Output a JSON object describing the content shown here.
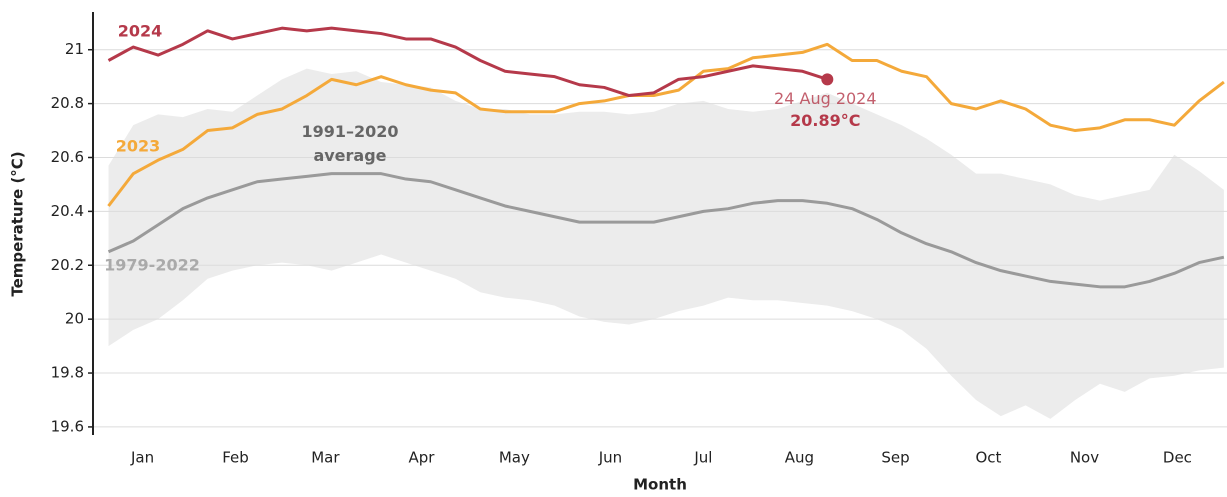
{
  "chart_data": {
    "type": "line",
    "xlabel": "Month",
    "ylabel": "Temperature (°C)",
    "xlim": [
      0,
      366
    ],
    "xticks": [
      {
        "value": 16,
        "label": "Jan"
      },
      {
        "value": 46,
        "label": "Feb"
      },
      {
        "value": 75,
        "label": "Mar"
      },
      {
        "value": 106,
        "label": "Apr"
      },
      {
        "value": 136,
        "label": "May"
      },
      {
        "value": 167,
        "label": "Jun"
      },
      {
        "value": 197,
        "label": "Jul"
      },
      {
        "value": 228,
        "label": "Aug"
      },
      {
        "value": 259,
        "label": "Sep"
      },
      {
        "value": 289,
        "label": "Oct"
      },
      {
        "value": 320,
        "label": "Nov"
      },
      {
        "value": 350,
        "label": "Dec"
      }
    ],
    "ylim": [
      19.57,
      21.14
    ],
    "yticks": [
      19.6,
      19.8,
      20,
      20.2,
      20.4,
      20.6,
      20.8,
      21
    ],
    "grid": true,
    "x": [
      5,
      13,
      21,
      29,
      37,
      45,
      53,
      61,
      69,
      77,
      85,
      93,
      101,
      109,
      117,
      125,
      133,
      141,
      149,
      157,
      165,
      173,
      181,
      189,
      197,
      205,
      213,
      221,
      229,
      237,
      245,
      253,
      261,
      269,
      277,
      285,
      293,
      301,
      309,
      317,
      325,
      333,
      341,
      349,
      357,
      365
    ],
    "band": {
      "name": "1979-2022",
      "color": "#ececec",
      "upper": [
        20.57,
        20.72,
        20.76,
        20.75,
        20.78,
        20.77,
        20.83,
        20.89,
        20.93,
        20.91,
        20.92,
        20.88,
        20.87,
        20.86,
        20.81,
        20.78,
        20.78,
        20.76,
        20.76,
        20.77,
        20.77,
        20.76,
        20.77,
        20.8,
        20.81,
        20.78,
        20.77,
        20.78,
        20.81,
        20.84,
        20.8,
        20.76,
        20.72,
        20.67,
        20.61,
        20.54,
        20.54,
        20.52,
        20.5,
        20.46,
        20.44,
        20.46,
        20.48,
        20.61,
        20.55,
        20.48
      ],
      "lower": [
        19.9,
        19.96,
        20.0,
        20.07,
        20.15,
        20.18,
        20.2,
        20.21,
        20.2,
        20.18,
        20.21,
        20.24,
        20.21,
        20.18,
        20.15,
        20.1,
        20.08,
        20.07,
        20.05,
        20.01,
        19.99,
        19.98,
        20.0,
        20.03,
        20.05,
        20.08,
        20.07,
        20.07,
        20.06,
        20.05,
        20.03,
        20.0,
        19.96,
        19.89,
        19.79,
        19.7,
        19.64,
        19.68,
        19.63,
        19.7,
        19.76,
        19.73,
        19.78,
        19.79,
        19.81,
        19.82
      ]
    },
    "series": [
      {
        "name": "1991–2020 average",
        "color": "#9a9a9a",
        "values": [
          20.25,
          20.29,
          20.35,
          20.41,
          20.45,
          20.48,
          20.51,
          20.52,
          20.53,
          20.54,
          20.54,
          20.54,
          20.52,
          20.51,
          20.48,
          20.45,
          20.42,
          20.4,
          20.38,
          20.36,
          20.36,
          20.36,
          20.36,
          20.38,
          20.4,
          20.41,
          20.43,
          20.44,
          20.44,
          20.43,
          20.41,
          20.37,
          20.32,
          20.28,
          20.25,
          20.21,
          20.18,
          20.16,
          20.14,
          20.13,
          20.12,
          20.12,
          20.14,
          20.17,
          20.21,
          20.23
        ]
      },
      {
        "name": "2023",
        "color": "#f4a93a",
        "values": [
          20.42,
          20.54,
          20.59,
          20.63,
          20.7,
          20.71,
          20.76,
          20.78,
          20.83,
          20.89,
          20.87,
          20.9,
          20.87,
          20.85,
          20.84,
          20.78,
          20.77,
          20.77,
          20.77,
          20.8,
          20.81,
          20.83,
          20.83,
          20.85,
          20.92,
          20.93,
          20.97,
          20.98,
          20.99,
          21.02,
          20.96,
          20.96,
          20.92,
          20.9,
          20.8,
          20.78,
          20.81,
          20.78,
          20.72,
          20.7,
          20.71,
          20.74,
          20.74,
          20.72,
          20.81,
          20.88
        ]
      },
      {
        "name": "2024",
        "color": "#b5394a",
        "values": [
          20.96,
          21.01,
          20.98,
          21.02,
          21.07,
          21.04,
          21.06,
          21.08,
          21.07,
          21.08,
          21.07,
          21.06,
          21.04,
          21.04,
          21.01,
          20.96,
          20.92,
          20.91,
          20.9,
          20.87,
          20.86,
          20.83,
          20.84,
          20.89,
          20.9,
          20.92,
          20.94,
          20.93,
          20.92,
          20.89,
          null,
          null,
          null,
          null,
          null,
          null,
          null,
          null,
          null,
          null,
          null,
          null,
          null,
          null,
          null,
          null
        ],
        "value_labels": [
          null,
          null,
          null,
          null,
          null,
          null,
          null,
          null,
          null,
          null,
          null,
          null,
          null,
          null,
          null,
          null,
          null,
          null,
          null,
          null,
          null,
          null,
          null,
          null,
          null,
          null,
          null,
          null,
          null,
          "20.89°C",
          null,
          null,
          null,
          null,
          null,
          null,
          null,
          null,
          null,
          null,
          null,
          null,
          null,
          null,
          null,
          null
        ],
        "annotation": "24 Aug 2024"
      }
    ]
  }
}
